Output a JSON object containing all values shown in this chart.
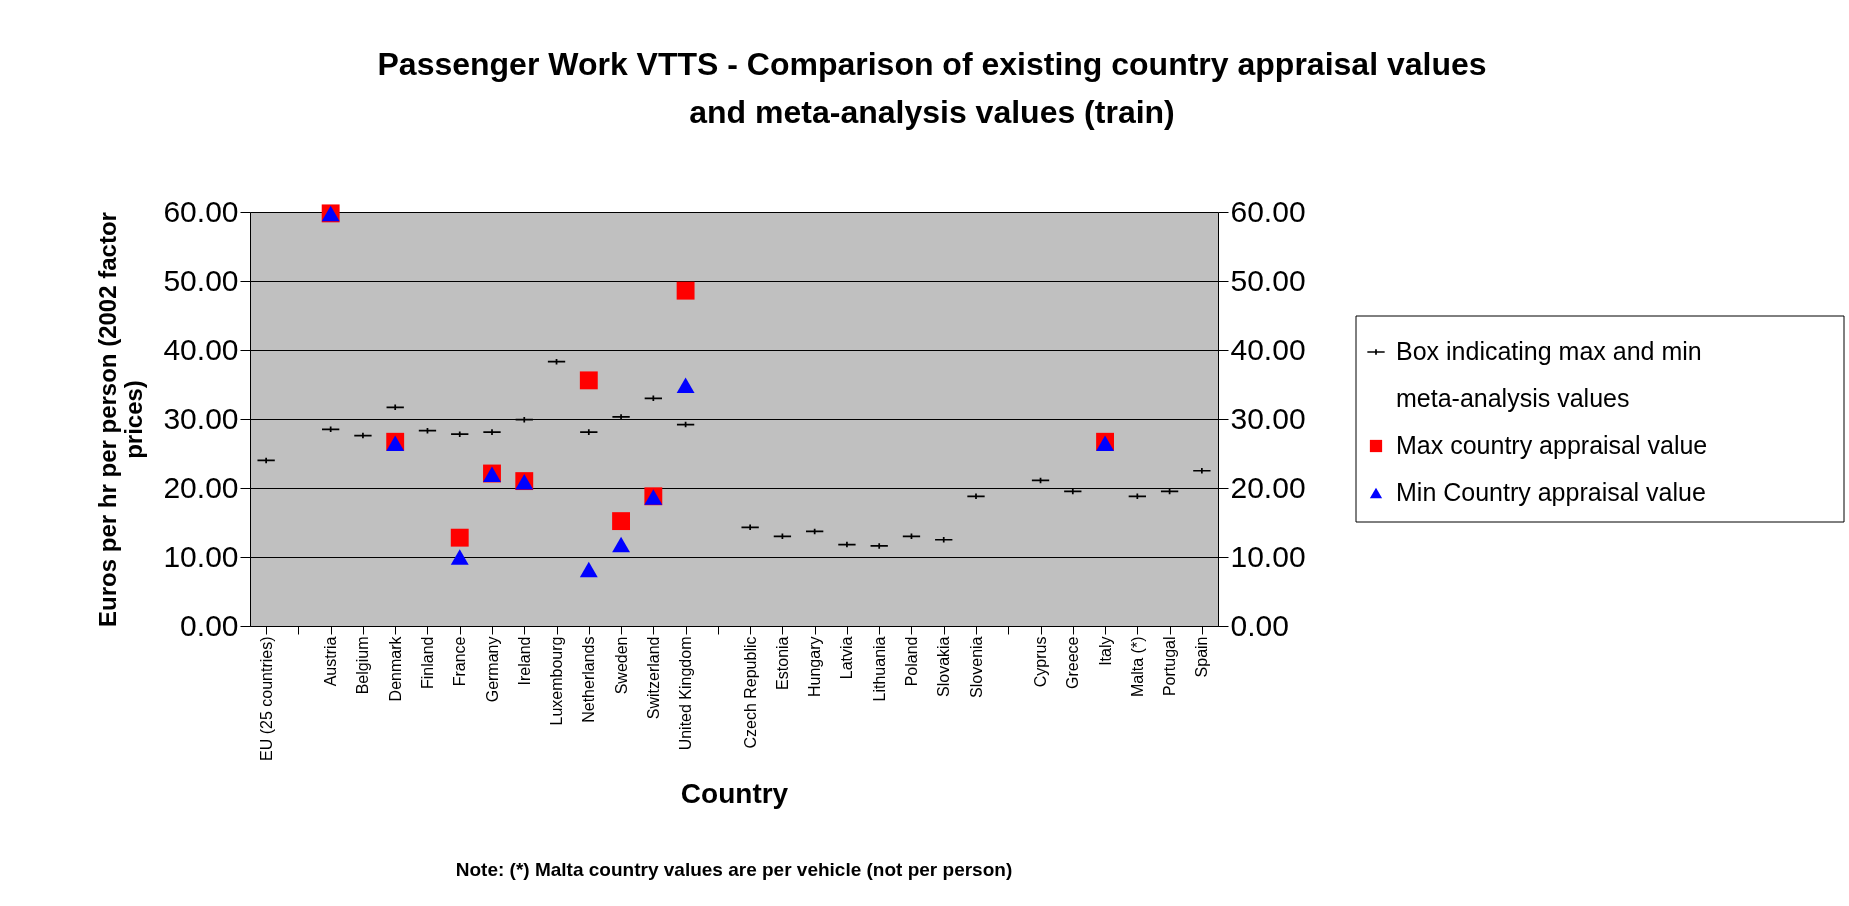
{
  "chart_data": {
    "type": "scatter",
    "title": "Passenger Work VTTS - Comparison of existing country appraisal values and meta-analysis values (train)",
    "xlabel": "Country",
    "ylabel": "Euros per hr per person (2002 factor prices)",
    "annotations": [
      "Note: (*) Malta country values are per vehicle (not per person)"
    ],
    "categories": [
      "EU (25 countries)",
      null,
      "Austria",
      "Belgium",
      "Denmark",
      "Finland",
      "France",
      "Germany",
      "Ireland",
      "Luxembourg",
      "Netherlands",
      "Sweden",
      "Switzerland",
      "United Kingdom",
      null,
      "Czech Republic",
      "Estonia",
      "Hungary",
      "Latvia",
      "Lithuania",
      "Poland",
      "Slovakia",
      "Slovenia",
      null,
      "Cyprus",
      "Greece",
      "Italy",
      "Malta (*)",
      "Portugal",
      "Spain"
    ],
    "series": [
      {
        "name": "Box indicating max and min meta-analysis values",
        "type": "scatter",
        "color": "#000000",
        "values": [
          24.0,
          null,
          28.5,
          27.6,
          31.7,
          28.3,
          27.8,
          28.1,
          29.9,
          38.3,
          28.1,
          30.3,
          33.0,
          29.2,
          null,
          14.3,
          13.0,
          13.7,
          11.8,
          11.6,
          13.0,
          12.5,
          18.8,
          null,
          21.1,
          19.5,
          null,
          18.8,
          19.5,
          22.5
        ]
      },
      {
        "name": "Max country appraisal value",
        "type": "scatter",
        "marker": "square",
        "color": "#ff0000",
        "values": [
          null,
          null,
          59.8,
          null,
          26.7,
          null,
          12.8,
          22.1,
          21.0,
          null,
          35.6,
          15.2,
          18.8,
          48.6,
          null,
          null,
          null,
          null,
          null,
          null,
          null,
          null,
          null,
          null,
          null,
          null,
          26.7,
          null,
          null,
          null
        ]
      },
      {
        "name": "Min Country appraisal value",
        "type": "scatter",
        "marker": "triangle",
        "color": "#0000ff",
        "values": [
          null,
          null,
          59.8,
          null,
          26.5,
          null,
          10.0,
          22.0,
          20.9,
          null,
          8.2,
          11.8,
          18.7,
          34.9,
          null,
          null,
          null,
          null,
          null,
          null,
          null,
          null,
          null,
          null,
          null,
          null,
          26.5,
          null,
          null,
          null
        ]
      }
    ],
    "ylim": [
      0,
      60
    ],
    "yticks": [
      {
        "value": 0,
        "label": "0.00"
      },
      {
        "value": 10,
        "label": "10.00"
      },
      {
        "value": 20,
        "label": "20.00"
      },
      {
        "value": 30,
        "label": "30.00"
      },
      {
        "value": 40,
        "label": "40.00"
      },
      {
        "value": 50,
        "label": "50.00"
      },
      {
        "value": 60,
        "label": "60.00"
      }
    ],
    "y2lim": [
      0,
      60
    ],
    "y2ticks": [
      {
        "value": 0,
        "label": "0.00"
      },
      {
        "value": 10,
        "label": "10.00"
      },
      {
        "value": 20,
        "label": "20.00"
      },
      {
        "value": 30,
        "label": "30.00"
      },
      {
        "value": 40,
        "label": "40.00"
      },
      {
        "value": 50,
        "label": "50.00"
      },
      {
        "value": 60,
        "label": "60.00"
      }
    ],
    "grid": "y",
    "legend": "right"
  }
}
